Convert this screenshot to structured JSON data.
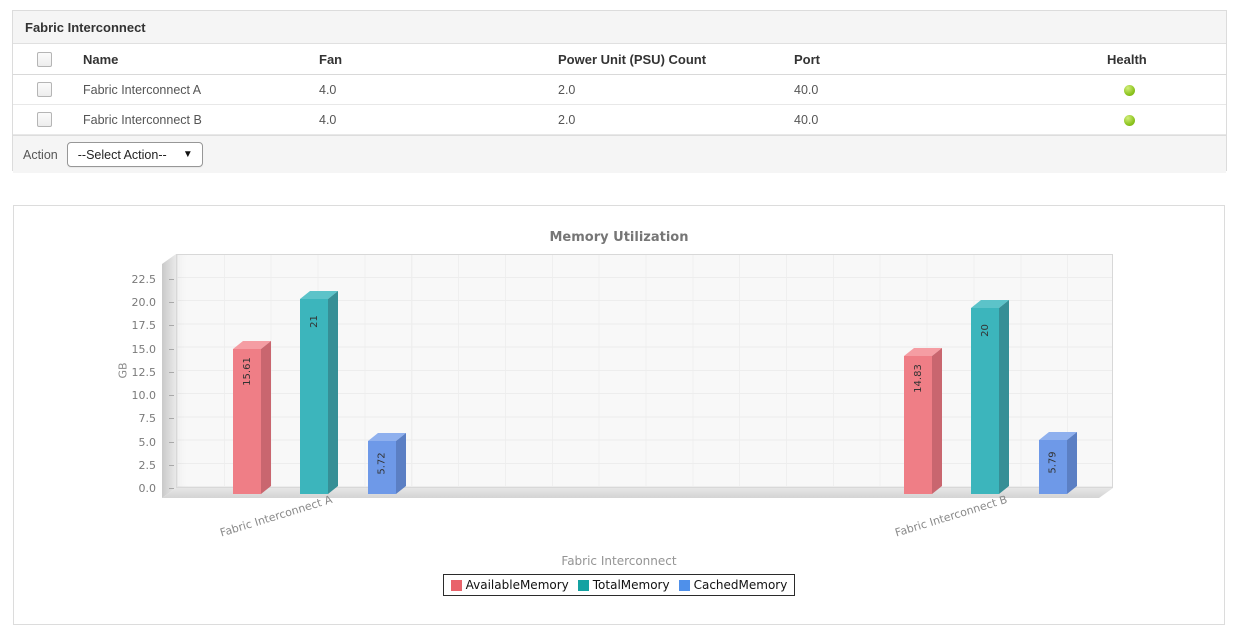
{
  "table_panel": {
    "title": "Fabric Interconnect",
    "columns": [
      "Name",
      "Fan",
      "Power Unit (PSU) Count",
      "Port",
      "Health"
    ],
    "rows": [
      {
        "name": "Fabric Interconnect A",
        "fan": "4.0",
        "psu": "2.0",
        "port": "40.0",
        "health": "green"
      },
      {
        "name": "Fabric Interconnect B",
        "fan": "4.0",
        "psu": "2.0",
        "port": "40.0",
        "health": "green"
      }
    ],
    "health_color": "#8cc41f",
    "action_label": "Action",
    "action_select": "--Select Action--"
  },
  "chart_data": {
    "type": "bar",
    "title": "Memory Utilization",
    "xlabel": "Fabric Interconnect",
    "ylabel": "GB",
    "categories": [
      "Fabric Interconnect A",
      "Fabric Interconnect B"
    ],
    "series": [
      {
        "name": "AvailableMemory",
        "values": [
          15.61,
          14.83
        ],
        "bar_labels": [
          "15.61",
          "14.83"
        ],
        "color_front": "#ef7e86",
        "color_side": "#c9666f",
        "color_top": "#f59da3",
        "color_legend": "#e9636b"
      },
      {
        "name": "TotalMemory",
        "values": [
          21,
          20
        ],
        "bar_labels": [
          "21",
          "20"
        ],
        "color_front": "#3cb5bc",
        "color_side": "#368f96",
        "color_top": "#5cc3c9",
        "color_legend": "#14a2a2"
      },
      {
        "name": "CachedMemory",
        "values": [
          5.72,
          5.79
        ],
        "bar_labels": [
          "5.72",
          "5.79"
        ],
        "color_front": "#6e99e8",
        "color_side": "#5b7fc4",
        "color_top": "#8fb0ee",
        "color_legend": "#4f90ea"
      }
    ],
    "ylim": [
      0,
      22.5
    ],
    "ytick_step": 2.5,
    "grid": true,
    "legend_position": "bottom",
    "style": "3d-bars"
  }
}
